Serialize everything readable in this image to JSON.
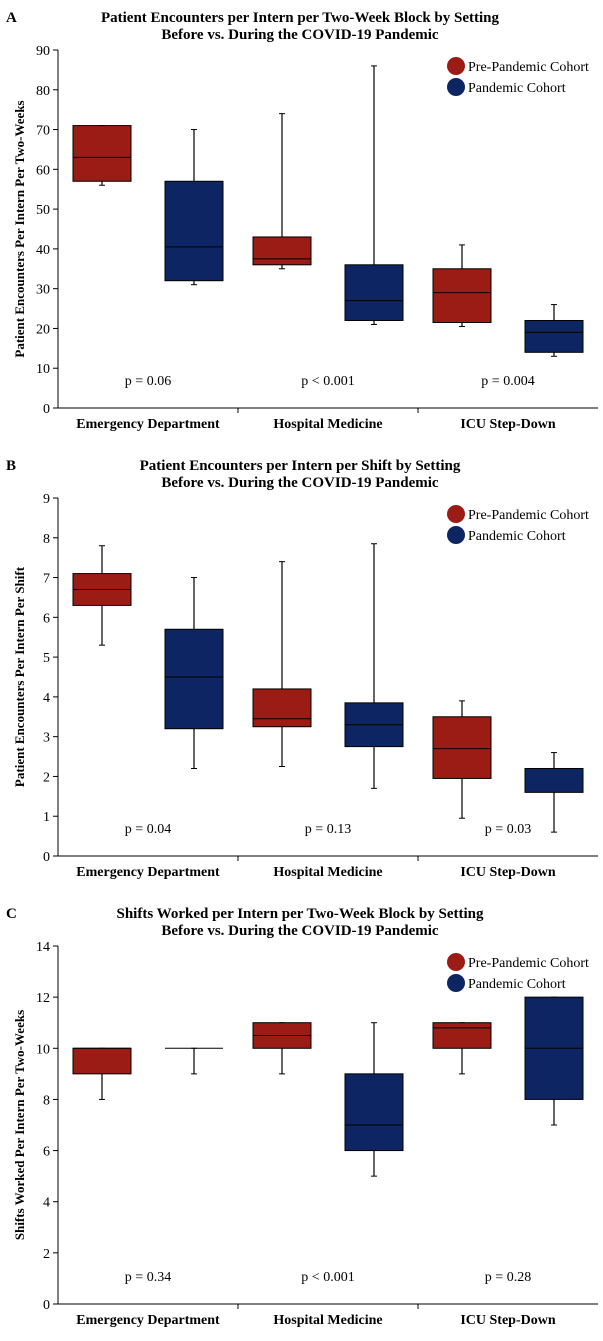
{
  "colors": {
    "pre": "#9b1c14",
    "pandemic": "#0d2563",
    "axis": "#000000"
  },
  "chart_data": [
    {
      "type": "box",
      "letter": "A",
      "title_lines": [
        "Patient Encounters per Intern per Two-Week Block by Setting",
        "Before vs. During the COVID-19 Pandemic"
      ],
      "ylabel": "Patient Encounters Per Intern Per Two-Weeks",
      "ylim": [
        0,
        90
      ],
      "yticks": [
        0,
        10,
        20,
        30,
        40,
        50,
        60,
        70,
        80,
        90
      ],
      "categories": [
        "Emergency Department",
        "Hospital Medicine",
        "ICU Step-Down"
      ],
      "legend": [
        "Pre-Pandemic Cohort",
        "Pandemic Cohort"
      ],
      "p_values": [
        "p = 0.06",
        "p < 0.001",
        "p = 0.004"
      ],
      "series": [
        {
          "name": "Pre-Pandemic Cohort",
          "boxes": [
            {
              "min": 56,
              "q1": 57,
              "median": 63,
              "q3": 71,
              "max": 71
            },
            {
              "min": 35,
              "q1": 36,
              "median": 37.5,
              "q3": 43,
              "max": 74
            },
            {
              "min": 20.5,
              "q1": 21.5,
              "median": 29,
              "q3": 35,
              "max": 41
            }
          ]
        },
        {
          "name": "Pandemic Cohort",
          "boxes": [
            {
              "min": 31,
              "q1": 32,
              "median": 40.5,
              "q3": 57,
              "max": 70
            },
            {
              "min": 21,
              "q1": 22,
              "median": 27,
              "q3": 36,
              "max": 86
            },
            {
              "min": 13,
              "q1": 14,
              "median": 19,
              "q3": 22,
              "max": 26
            }
          ]
        }
      ]
    },
    {
      "type": "box",
      "letter": "B",
      "title_lines": [
        "Patient Encounters per Intern per Shift by Setting",
        "Before vs. During the COVID-19 Pandemic"
      ],
      "ylabel": "Patient Encounters Per Intern Per Shift",
      "ylim": [
        0,
        9
      ],
      "yticks": [
        0,
        1,
        2,
        3,
        4,
        5,
        6,
        7,
        8,
        9
      ],
      "categories": [
        "Emergency Department",
        "Hospital Medicine",
        "ICU Step-Down"
      ],
      "legend": [
        "Pre-Pandemic Cohort",
        "Pandemic Cohort"
      ],
      "p_values": [
        "p = 0.04",
        "p = 0.13",
        "p = 0.03"
      ],
      "series": [
        {
          "name": "Pre-Pandemic Cohort",
          "boxes": [
            {
              "min": 5.3,
              "q1": 6.3,
              "median": 6.7,
              "q3": 7.1,
              "max": 7.8
            },
            {
              "min": 2.25,
              "q1": 3.25,
              "median": 3.45,
              "q3": 4.2,
              "max": 7.4
            },
            {
              "min": 0.95,
              "q1": 1.95,
              "median": 2.7,
              "q3": 3.5,
              "max": 3.9
            }
          ]
        },
        {
          "name": "Pandemic Cohort",
          "boxes": [
            {
              "min": 2.2,
              "q1": 3.2,
              "median": 4.5,
              "q3": 5.7,
              "max": 7.0
            },
            {
              "min": 1.7,
              "q1": 2.75,
              "median": 3.3,
              "q3": 3.85,
              "max": 7.85
            },
            {
              "min": 0.6,
              "q1": 1.6,
              "median": 2.2,
              "q3": 2.2,
              "max": 2.6
            }
          ]
        }
      ]
    },
    {
      "type": "box",
      "letter": "C",
      "title_lines": [
        "Shifts Worked per Intern per Two-Week Block by Setting",
        "Before vs. During the COVID-19 Pandemic"
      ],
      "ylabel": "Shifts Worked Per Intern Per Two-Weeks",
      "ylim": [
        0,
        14
      ],
      "yticks": [
        0,
        2,
        4,
        6,
        8,
        10,
        12,
        14
      ],
      "categories": [
        "Emergency Department",
        "Hospital Medicine",
        "ICU Step-Down"
      ],
      "legend": [
        "Pre-Pandemic Cohort",
        "Pandemic Cohort"
      ],
      "p_values": [
        "p = 0.34",
        "p < 0.001",
        "p = 0.28"
      ],
      "series": [
        {
          "name": "Pre-Pandemic Cohort",
          "boxes": [
            {
              "min": 8,
              "q1": 9,
              "median": 10,
              "q3": 10,
              "max": 10
            },
            {
              "min": 9,
              "q1": 10,
              "median": 10.5,
              "q3": 11,
              "max": 11
            },
            {
              "min": 9,
              "q1": 10,
              "median": 10.8,
              "q3": 11,
              "max": 11
            }
          ]
        },
        {
          "name": "Pandemic Cohort",
          "boxes": [
            {
              "min": 9,
              "q1": 10,
              "median": 10,
              "q3": 10,
              "max": 10
            },
            {
              "min": 5,
              "q1": 6,
              "median": 7,
              "q3": 9,
              "max": 11
            },
            {
              "min": 7,
              "q1": 8,
              "median": 10,
              "q3": 12,
              "max": 12
            }
          ]
        }
      ]
    }
  ]
}
